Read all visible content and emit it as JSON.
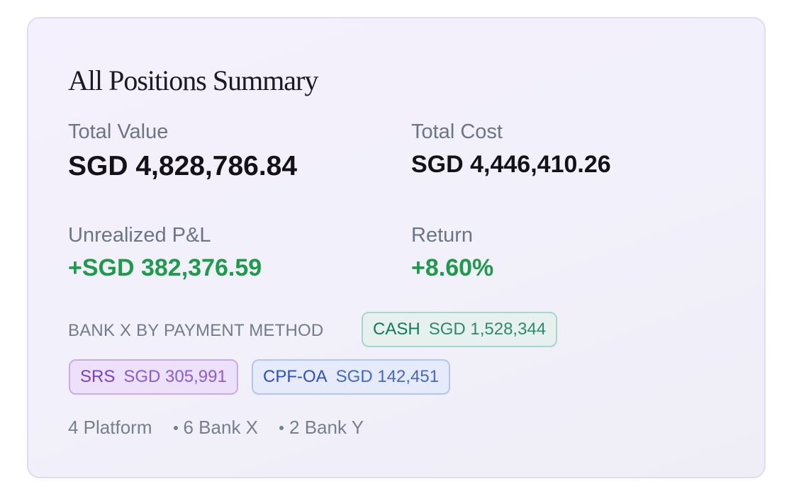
{
  "summary": {
    "title": "All Positions Summary",
    "total_value": {
      "label": "Total Value",
      "value": "SGD 4,828,786.84"
    },
    "total_cost": {
      "label": "Total Cost",
      "value": "SGD 4,446,410.26"
    },
    "unrealized_pnl": {
      "label": "Unrealized P&L",
      "value": "+SGD 382,376.59"
    },
    "return": {
      "label": "Return",
      "value": "+8.60%"
    }
  },
  "payment_methods": {
    "label": "BANK X BY PAYMENT METHOD",
    "chips": [
      {
        "name": "CASH",
        "amount": "SGD 1,528,344",
        "color": "#107a5b"
      },
      {
        "name": "SRS",
        "amount": "SGD 305,991",
        "color": "#7a3fd0"
      },
      {
        "name": "CPF-OA",
        "amount": "SGD 142,451",
        "color": "#2d4fc4"
      }
    ]
  },
  "platform_counts": {
    "platform": "4 Platform",
    "bank_x": "6 Bank X",
    "bank_y": "2 Bank Y"
  },
  "colors": {
    "positive": "#1e9a4b",
    "card_border": "#e2dbf6"
  }
}
